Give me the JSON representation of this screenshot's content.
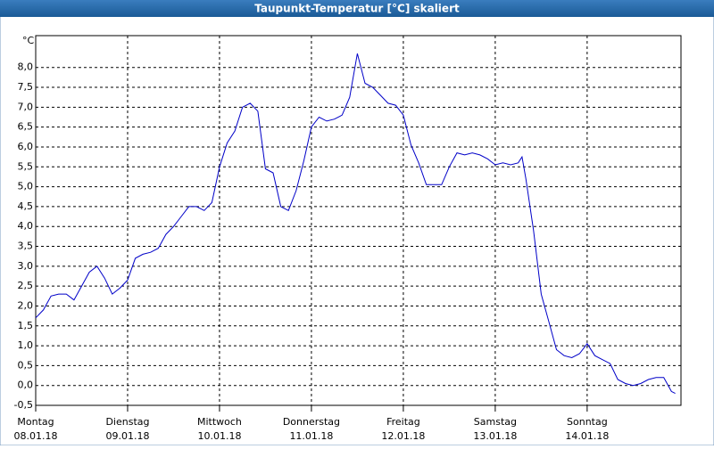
{
  "chart_data": {
    "type": "line",
    "title": "Taupunkt-Temperatur [°C] skaliert",
    "y_label": "°C",
    "xlim": [
      0,
      168.5
    ],
    "ylim": [
      -0.5,
      8.8
    ],
    "xticks": [
      {
        "value": 0,
        "label": "Montag"
      },
      {
        "value": 24,
        "label": "Dienstag"
      },
      {
        "value": 48,
        "label": "Mittwoch"
      },
      {
        "value": 72,
        "label": "Donnerstag"
      },
      {
        "value": 96,
        "label": "Freitag"
      },
      {
        "value": 120,
        "label": "Samstag"
      },
      {
        "value": 144,
        "label": "Sonntag"
      }
    ],
    "xtick_dates": [
      "08.01.18",
      "09.01.18",
      "10.01.18",
      "11.01.18",
      "12.01.18",
      "13.01.18",
      "14.01.18"
    ],
    "yticks": [
      {
        "value": -0.5,
        "label": "-0,5"
      },
      {
        "value": 0,
        "label": "0,0"
      },
      {
        "value": 0.5,
        "label": "0,5"
      },
      {
        "value": 1,
        "label": "1,0"
      },
      {
        "value": 1.5,
        "label": "1,5"
      },
      {
        "value": 2,
        "label": "2,0"
      },
      {
        "value": 2.5,
        "label": "2,5"
      },
      {
        "value": 3,
        "label": "3,0"
      },
      {
        "value": 3.5,
        "label": "3,5"
      },
      {
        "value": 4,
        "label": "4,0"
      },
      {
        "value": 4.5,
        "label": "4,5"
      },
      {
        "value": 5,
        "label": "5,0"
      },
      {
        "value": 5.5,
        "label": "5,5"
      },
      {
        "value": 6,
        "label": "6,0"
      },
      {
        "value": 6.5,
        "label": "6,5"
      },
      {
        "value": 7,
        "label": "7,0"
      },
      {
        "value": 7.5,
        "label": "7,5"
      },
      {
        "value": 8,
        "label": "8,0"
      }
    ],
    "grid": true,
    "series": [
      {
        "color": "#0000c8",
        "x": [
          0,
          2,
          4,
          6,
          8,
          10,
          12,
          14,
          16,
          18,
          20,
          22,
          24,
          26,
          28,
          30,
          32,
          34,
          36,
          38,
          40,
          42,
          44,
          46,
          48,
          50,
          52,
          54,
          56,
          58,
          60,
          62,
          64,
          66,
          68,
          70,
          72,
          74,
          76,
          78,
          80,
          82,
          84,
          86,
          88,
          90,
          92,
          94,
          96,
          98,
          100,
          102,
          104,
          106,
          108,
          110,
          112,
          114,
          116,
          118,
          120,
          122,
          124,
          126,
          127,
          128,
          130,
          132,
          134,
          136,
          138,
          140,
          142,
          144,
          146,
          148,
          150,
          152,
          154,
          156,
          158,
          160,
          162,
          164,
          166,
          167
        ],
        "values": [
          1.7,
          1.9,
          2.25,
          2.3,
          2.3,
          2.15,
          2.5,
          2.85,
          3.0,
          2.7,
          2.3,
          2.45,
          2.65,
          3.2,
          3.3,
          3.35,
          3.45,
          3.8,
          4.0,
          4.25,
          4.5,
          4.5,
          4.4,
          4.6,
          5.5,
          6.1,
          6.4,
          7.0,
          7.1,
          6.9,
          5.45,
          5.35,
          4.5,
          4.4,
          4.9,
          5.65,
          6.5,
          6.75,
          6.65,
          6.7,
          6.8,
          7.25,
          8.35,
          7.6,
          7.5,
          7.3,
          7.1,
          7.05,
          6.8,
          6.05,
          5.6,
          5.05,
          5.05,
          5.05,
          5.5,
          5.85,
          5.8,
          5.85,
          5.8,
          5.7,
          5.55,
          5.6,
          5.55,
          5.6,
          5.75,
          5.2,
          3.9,
          2.3,
          1.6,
          0.9,
          0.75,
          0.7,
          0.8,
          1.05,
          0.75,
          0.65,
          0.55,
          0.15,
          0.05,
          0.0,
          0.05,
          0.15,
          0.2,
          0.2,
          -0.15,
          -0.2
        ]
      }
    ]
  }
}
